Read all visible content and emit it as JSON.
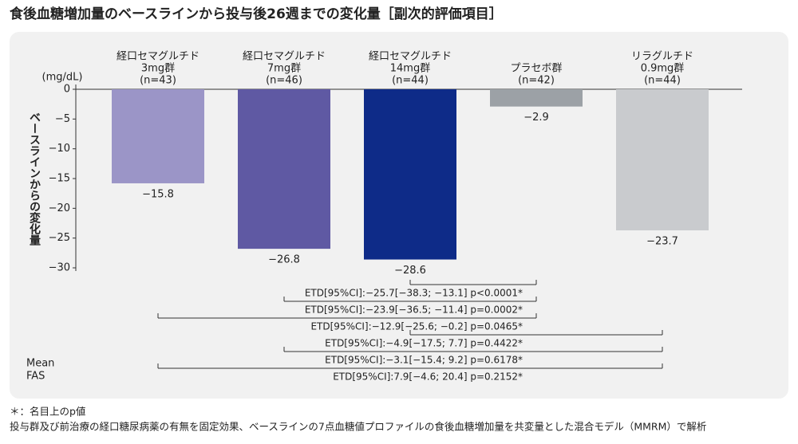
{
  "chart_data": {
    "type": "bar",
    "title": "食後血糖増加量のベースラインから投与後26週までの変化量［副次的評価項目］",
    "y_label": "ベースラインからの変化量",
    "y_unit": "(mg/dL)",
    "categories": [
      [
        "経口セマグルチド",
        "3mg群",
        "(n=43)"
      ],
      [
        "経口セマグルチド",
        "7mg群",
        "(n=46)"
      ],
      [
        "経口セマグルチド",
        "14mg群",
        "(n=44)"
      ],
      [
        "プラセボ群",
        "(n=42)"
      ],
      [
        "リラグルチド",
        "0.9mg群",
        "(n=44)"
      ]
    ],
    "values": [
      -15.8,
      -26.8,
      -28.6,
      -2.9,
      -23.7
    ],
    "value_labels": [
      "−15.8",
      "−26.8",
      "−28.6",
      "−2.9",
      "−23.7"
    ],
    "colors": [
      "#9b95c7",
      "#5f59a3",
      "#0e2b88",
      "#9ca1a6",
      "#c9cbce"
    ],
    "ylim": [
      -30,
      0
    ],
    "yticks": [
      0,
      {
        "value": -5,
        "label": "−5"
      },
      {
        "value": -10,
        "label": "−10"
      },
      {
        "value": -15,
        "label": "−15"
      },
      {
        "value": -20,
        "label": "−20"
      },
      {
        "value": -25,
        "label": "−25"
      },
      {
        "value": -30,
        "label": "−30"
      }
    ],
    "grid": false,
    "annotations": [
      "ETD[95%CI]:−25.7[−38.3; −13.1] p<0.0001*",
      "ETD[95%CI]:−23.9[−36.5; −11.4] p=0.0002*",
      "ETD[95%CI]:−12.9[−25.6; −0.2] p=0.0465*",
      "ETD[95%CI]:−4.9[−17.5; 7.7] p=0.4422*",
      "ETD[95%CI]:−3.1[−15.4; 9.2] p=0.6178*",
      "ETD[95%CI]:7.9[−4.6; 20.4] p=0.2152*"
    ],
    "side_notes": [
      "Mean",
      "FAS"
    ],
    "footnotes": [
      "＊：名目上のp値",
      "投与群及び前治療の経口糖尿病薬の有無を固定効果、ベースラインの7点血糖値プロファイルの食後血糖増加量を共変量とした混合モデル（MMRM）で解析"
    ]
  }
}
